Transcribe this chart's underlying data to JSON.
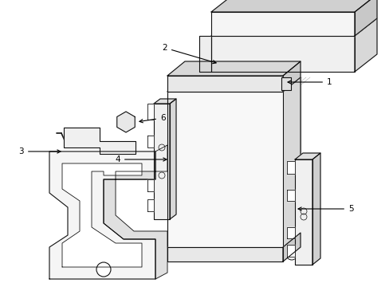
{
  "background_color": "#ffffff",
  "line_color": "#111111",
  "line_width": 0.8,
  "label_fontsize": 7.5,
  "figsize": [
    4.89,
    3.6
  ],
  "dpi": 100
}
